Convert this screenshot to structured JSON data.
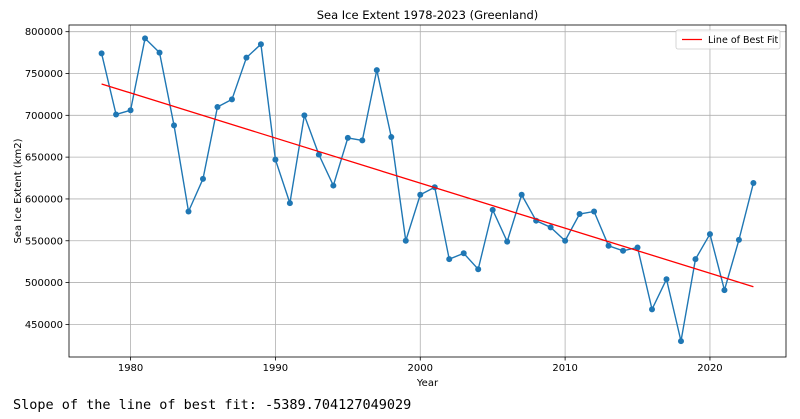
{
  "chart_data": {
    "type": "line",
    "title": "Sea Ice Extent 1978-2023 (Greenland)",
    "xlabel": "Year",
    "ylabel": "Sea Ice Extent (km2)",
    "xlim": [
      1975.75,
      2025.25
    ],
    "ylim": [
      411000,
      808000
    ],
    "xticks": [
      1980,
      1990,
      2000,
      2010,
      2020
    ],
    "yticks": [
      450000,
      500000,
      550000,
      600000,
      650000,
      700000,
      750000,
      800000
    ],
    "grid": true,
    "legend_placement": "top-right",
    "series": [
      {
        "kind": "line-markers",
        "color": "#1f77b4",
        "x": [
          1978,
          1979,
          1980,
          1981,
          1982,
          1983,
          1984,
          1985,
          1986,
          1987,
          1988,
          1989,
          1990,
          1991,
          1992,
          1993,
          1994,
          1995,
          1996,
          1997,
          1998,
          1999,
          2000,
          2001,
          2002,
          2003,
          2004,
          2005,
          2006,
          2007,
          2008,
          2009,
          2010,
          2011,
          2012,
          2013,
          2014,
          2015,
          2016,
          2017,
          2018,
          2019,
          2020,
          2021,
          2022,
          2023
        ],
        "y": [
          774000,
          701000,
          706000,
          792000,
          775000,
          688000,
          585000,
          624000,
          710000,
          719000,
          769000,
          785000,
          647000,
          595000,
          700000,
          653000,
          616000,
          673000,
          670000,
          754000,
          674000,
          550000,
          605000,
          614000,
          528000,
          535000,
          516000,
          587000,
          549000,
          605000,
          574000,
          566000,
          550000,
          582000,
          585000,
          544000,
          538000,
          542000,
          468000,
          504000,
          430000,
          528000,
          558000,
          491000,
          551000,
          619000
        ]
      },
      {
        "name": "Line of Best Fit",
        "kind": "line",
        "color": "#ff0000",
        "x": [
          1978,
          2023
        ],
        "y": [
          737500,
          495000
        ]
      }
    ]
  },
  "output": {
    "slope_text": "Slope of the line of best fit: -5389.704127049029"
  }
}
